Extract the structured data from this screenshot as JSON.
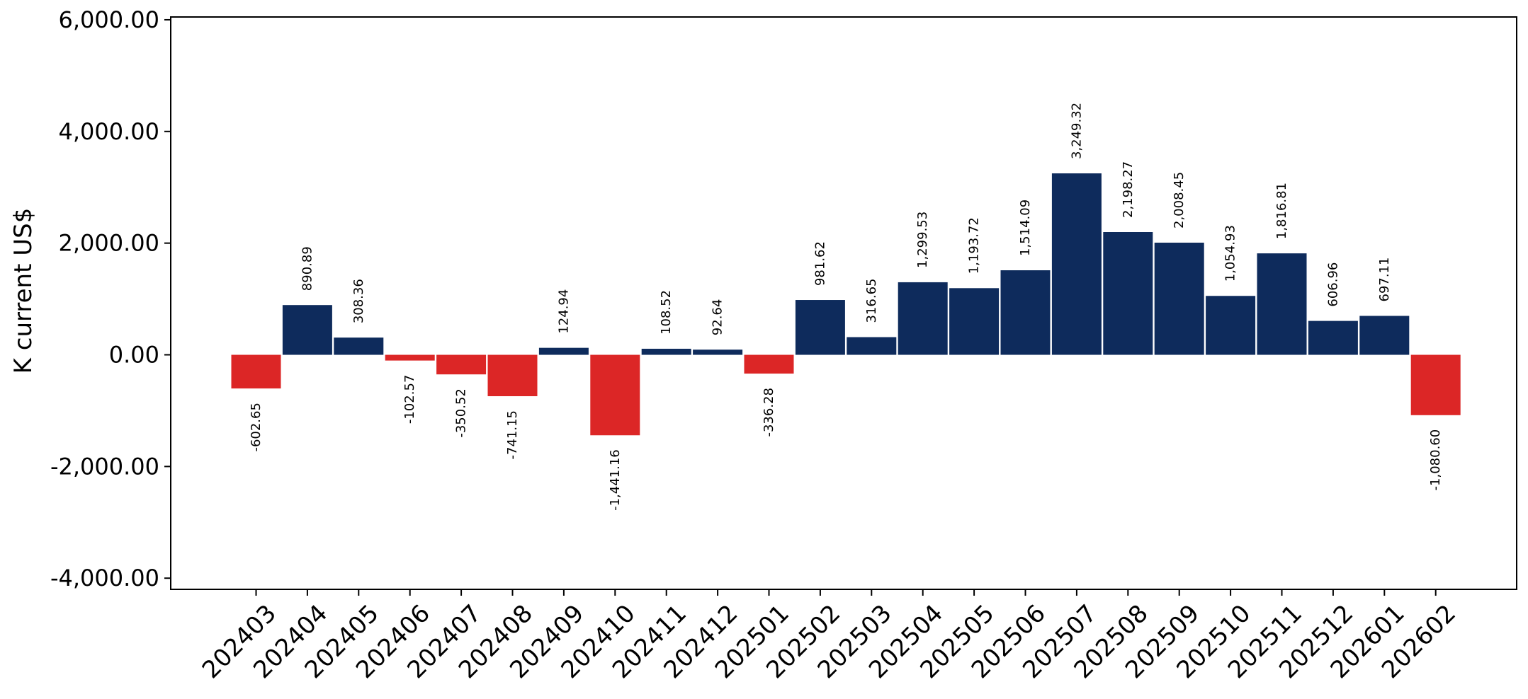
{
  "chart_data": {
    "type": "bar",
    "title": "",
    "xlabel": "",
    "ylabel": "K current US$",
    "ylim": [
      -4200,
      6050
    ],
    "yticks": [
      -4000,
      -2000,
      0,
      2000,
      4000,
      6000
    ],
    "ytick_labels": [
      "-4,000.00",
      "-2,000.00",
      "0.00",
      "2,000.00",
      "4,000.00",
      "6,000.00"
    ],
    "grid": false,
    "legend": "none",
    "colors": {
      "positive": "#0e2b5c",
      "negative": "#dc2626"
    },
    "categories": [
      "202403",
      "202404",
      "202405",
      "202406",
      "202407",
      "202408",
      "202409",
      "202410",
      "202411",
      "202412",
      "202501",
      "202502",
      "202503",
      "202504",
      "202505",
      "202506",
      "202507",
      "202508",
      "202509",
      "202510",
      "202511",
      "202512",
      "202601",
      "202602"
    ],
    "values": [
      -602.65,
      890.89,
      308.36,
      -102.57,
      -350.52,
      -741.15,
      124.94,
      -1441.16,
      108.52,
      92.64,
      -336.28,
      981.62,
      316.65,
      1299.53,
      1193.72,
      1514.09,
      3249.32,
      2198.27,
      2008.45,
      1054.93,
      1816.81,
      606.96,
      697.11,
      -1080.6
    ],
    "data_labels": [
      "-602.65",
      "890.89",
      "308.36",
      "-102.57",
      "-350.52",
      "-741.15",
      "124.94",
      "-1,441.16",
      "108.52",
      "92.64",
      "-336.28",
      "981.62",
      "316.65",
      "1,299.53",
      "1,193.72",
      "1,514.09",
      "3,249.32",
      "2,198.27",
      "2,008.45",
      "1,054.93",
      "1,816.81",
      "606.96",
      "697.11",
      "-1,080.60"
    ]
  }
}
